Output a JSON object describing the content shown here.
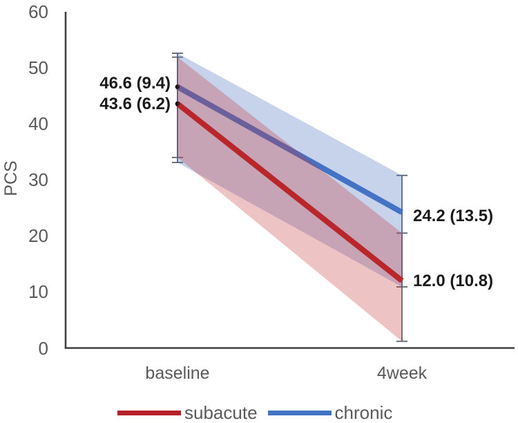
{
  "figure": {
    "background": "#ffffff"
  },
  "chart_data": {
    "type": "line",
    "title": "",
    "ylabel": "PCS",
    "xlabel": "",
    "ylim": [
      0,
      60
    ],
    "yticks": [
      0,
      10,
      20,
      30,
      40,
      50,
      60
    ],
    "categories": [
      "baseline",
      "4week"
    ],
    "series": [
      {
        "name": "subacute",
        "color": "#b42025",
        "band_color": "rgba(200,55,60,0.30)",
        "means": [
          43.6,
          12.0
        ],
        "sd": [
          6.2,
          10.8
        ],
        "point_labels": [
          "43.6 (6.2)",
          "12.0 (10.8)"
        ],
        "interval": [
          [
            34.0,
            51.9
          ],
          [
            1.2,
            20.5
          ]
        ]
      },
      {
        "name": "chronic",
        "color": "#4472c4",
        "band_color": "rgba(78,118,190,0.32)",
        "means": [
          46.6,
          24.2
        ],
        "sd": [
          9.4,
          13.5
        ],
        "point_labels": [
          "46.6 (9.4)",
          "24.2 (13.5)"
        ],
        "interval": [
          [
            33.1,
            52.6
          ],
          [
            10.9,
            30.8
          ]
        ]
      }
    ],
    "legend": {
      "position": "bottom",
      "entries": [
        "subacute",
        "chronic"
      ]
    },
    "grid": false,
    "axis_color": "#3f3f3f",
    "error_bar_color": "#5a6472",
    "tick_text_color": "#595959",
    "data_label_color": "#1a1a1a",
    "marker_color": "#111111"
  }
}
